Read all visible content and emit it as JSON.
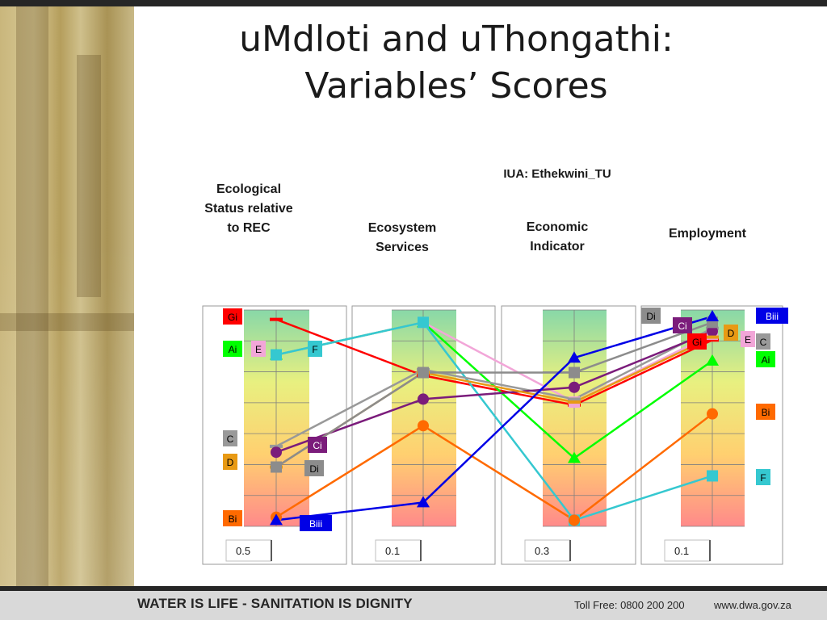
{
  "slide": {
    "title_line1": "uMdloti and uThongathi:",
    "title_line2": "Variables’ Scores",
    "iua": "IUA: Ethekwini_TU"
  },
  "footer": {
    "slogan": "WATER IS LIFE - SANITATION IS DIGNITY",
    "phone": "Toll Free: 0800 200 200",
    "website": "www.dwa.gov.za"
  },
  "colors": {
    "Gi": "#ff0000",
    "Ai": "#00ff00",
    "E": "#f2a6d8",
    "F": "#35c8d0",
    "C": "#999999",
    "Ci": "#7b1c7b",
    "D": "#e89a14",
    "Di": "#8c8c8c",
    "Bi": "#ff6a00",
    "Biii": "#0000e6"
  },
  "chart_data": {
    "type": "line",
    "title": "",
    "categories": [
      "Ecological Status relative to REC",
      "Ecosystem Services",
      "Economic Indicator",
      "Employment"
    ],
    "weights": [
      "0.5",
      "0.1",
      "0.3",
      "0.1"
    ],
    "ylim": [
      0,
      7
    ],
    "grid": true,
    "background_gradient": [
      "#88d8a8",
      "#e8f080",
      "#ffd070",
      "#ff8a8a"
    ],
    "series": [
      {
        "name": "Gi",
        "color": "#ff0000",
        "marker": "dash",
        "values": [
          6.9,
          5.0,
          4.0,
          6.2
        ]
      },
      {
        "name": "Ai",
        "color": "#00ff00",
        "marker": "triangle",
        "values": [
          5.7,
          6.8,
          2.2,
          5.5
        ]
      },
      {
        "name": "E",
        "color": "#f2a6d8",
        "marker": "square",
        "values": [
          5.7,
          6.8,
          4.1,
          6.4
        ]
      },
      {
        "name": "F",
        "color": "#35c8d0",
        "marker": "square",
        "values": [
          5.7,
          6.8,
          0.1,
          1.6
        ]
      },
      {
        "name": "C",
        "color": "#999999",
        "marker": "dash",
        "values": [
          2.6,
          5.2,
          4.2,
          6.6
        ]
      },
      {
        "name": "Ci",
        "color": "#7b1c7b",
        "marker": "circle",
        "values": [
          2.4,
          4.2,
          4.6,
          6.5
        ]
      },
      {
        "name": "D",
        "color": "#e89a14",
        "marker": "dash",
        "values": [
          1.9,
          5.1,
          4.1,
          6.3
        ]
      },
      {
        "name": "Di",
        "color": "#8c8c8c",
        "marker": "square",
        "values": [
          1.9,
          5.1,
          5.1,
          6.8
        ]
      },
      {
        "name": "Bi",
        "color": "#ff6a00",
        "marker": "circle",
        "values": [
          0.2,
          3.3,
          0.1,
          3.7
        ]
      },
      {
        "name": "Biii",
        "color": "#0000e6",
        "marker": "triangle",
        "values": [
          0.1,
          0.7,
          5.6,
          7.0
        ]
      }
    ],
    "left_labels": [
      {
        "text": "Gi",
        "series": "Gi",
        "side": "left"
      },
      {
        "text": "Ai",
        "series": "Ai",
        "side": "left"
      },
      {
        "text": "E",
        "series": "E",
        "side": "left"
      },
      {
        "text": "F",
        "series": "F",
        "side": "right"
      },
      {
        "text": "C",
        "series": "C",
        "side": "left"
      },
      {
        "text": "Ci",
        "series": "Ci",
        "side": "right"
      },
      {
        "text": "D",
        "series": "D",
        "side": "left"
      },
      {
        "text": "Di",
        "series": "Di",
        "side": "right"
      },
      {
        "text": "Bi",
        "series": "Bi",
        "side": "left"
      },
      {
        "text": "Biii",
        "series": "Biii",
        "side": "right"
      }
    ],
    "right_labels": [
      {
        "text": "Di",
        "series": "Di",
        "side": "left"
      },
      {
        "text": "Ci",
        "series": "Ci",
        "side": "left"
      },
      {
        "text": "Gi",
        "series": "Gi",
        "side": "left"
      },
      {
        "text": "D",
        "series": "D",
        "side": "left"
      },
      {
        "text": "E",
        "series": "E",
        "side": "left"
      },
      {
        "text": "C",
        "series": "C",
        "side": "right"
      },
      {
        "text": "Ai",
        "series": "Ai",
        "side": "right"
      },
      {
        "text": "Biii",
        "series": "Biii",
        "side": "right"
      },
      {
        "text": "Bi",
        "series": "Bi",
        "side": "right"
      },
      {
        "text": "F",
        "series": "F",
        "side": "right"
      }
    ]
  }
}
